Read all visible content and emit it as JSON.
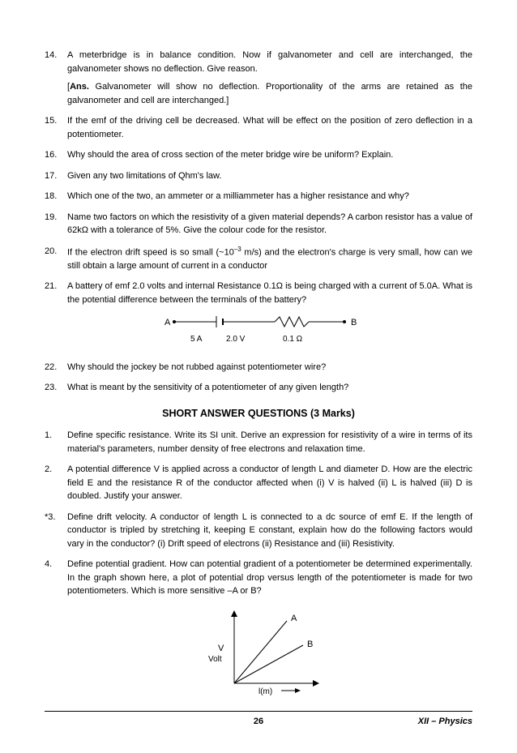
{
  "questions1": [
    {
      "num": "14.",
      "text": "A meterbridge is in balance condition. Now if galvanometer and cell are interchanged, the galvanometer shows no deflection. Give reason.",
      "ans": "[<b>Ans.</b> Galvanometer will show no deflection. Proportionality of the arms are retained as the galvanometer and cell are interchanged.]"
    },
    {
      "num": "15.",
      "text": "If the emf of the driving cell be decreased. What will be effect on the position of zero deflection in a potentiometer."
    },
    {
      "num": "16.",
      "text": "Why should the area of cross section of the meter bridge wire be uniform? Explain."
    },
    {
      "num": "17.",
      "text": "Given any two limitations of Qhm's law."
    },
    {
      "num": "18.",
      "text": "Which one of the two, an ammeter or a milliammeter has a higher resistance and why?"
    },
    {
      "num": "19.",
      "text": "Name two factors on which the resistivity of a given material depends? A carbon resistor has a value of 62kΩ with a tolerance of 5%. Give the colour code for the resistor."
    },
    {
      "num": "20.",
      "text": "If the electron drift speed is so small (~10<sup class='sup'>–3</sup> m/s) and the electron's charge is very small, how can we still obtain a large amount of current in a conductor"
    },
    {
      "num": "21.",
      "text": "A battery of emf 2.0 volts and internal Resistance 0.1Ω is being charged with a current of 5.0A. What is the potential difference between the terminals of the battery?"
    }
  ],
  "circuit": {
    "leftLabel": "A",
    "rightLabel": "B",
    "vals": [
      "5 A",
      "2.0 V",
      "0.1 Ω"
    ]
  },
  "questions2": [
    {
      "num": "22.",
      "text": "Why should the jockey be not rubbed against potentiometer wire?"
    },
    {
      "num": "23.",
      "text": "What is meant by the sensitivity of a potentiometer of any given length?"
    }
  ],
  "sectionTitle": "SHORT ANSWER QUESTIONS (3 Marks)",
  "questions3": [
    {
      "num": "1.",
      "text": "Define specific resistance. Write its SI unit. Derive an expression for resistivity of a wire in terms of its material's parameters, number density of free electrons and relaxation time."
    },
    {
      "num": "2.",
      "text": "A potential difference V is applied across a conductor of length L and diameter D. How are the electric field E and the resistance R of the conductor affected when (i) V is halved (ii) L is halved (iii) D is doubled. Justify your answer."
    },
    {
      "num": "*3.",
      "text": "Define drift velocity. A conductor of length L is connected to a dc source of emf E. If the length of conductor is tripled by stretching it, keeping E constant, explain how do the following factors would vary in the conductor? (i) Drift speed of electrons (ii) Resistance and (iii) Resistivity."
    },
    {
      "num": "4.",
      "text": "Define potential gradient. How can potential gradient of a potentiometer be determined experimentally. In the graph shown here, a plot of potential drop versus length of the potentiometer is made for two potentiometers. Which is more sensitive –A or B?"
    }
  ],
  "graph": {
    "yLabel": "V",
    "yUnit": "Volt",
    "xLabel": "l(m)",
    "seriesA": "A",
    "seriesB": "B"
  },
  "footer": {
    "page": "26",
    "label": "XII – Physics"
  }
}
